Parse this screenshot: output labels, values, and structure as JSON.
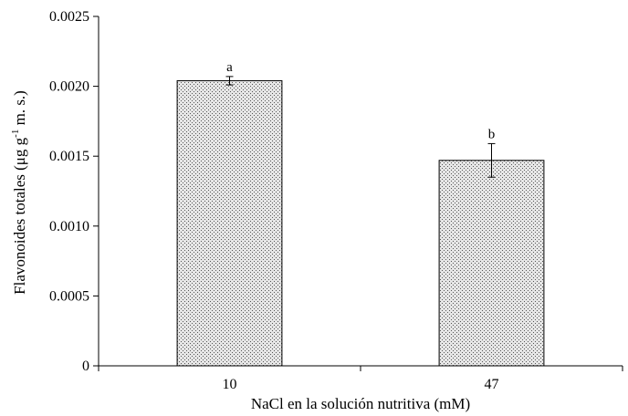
{
  "chart_data": {
    "type": "bar",
    "categories": [
      "10",
      "47"
    ],
    "values": [
      0.00204,
      0.00147
    ],
    "errors": [
      3e-05,
      0.00012
    ],
    "significance": [
      "a",
      "b"
    ],
    "xlabel": "NaCl en la solución nutritiva (mM)",
    "ylabel_main": "Flavonoides totales (μg g",
    "ylabel_sup": "-1",
    "ylabel_tail": " m. s.)",
    "ylim": [
      0,
      0.0025
    ],
    "yticks": [
      "0",
      "0.0005",
      "0.0010",
      "0.0015",
      "0.0020",
      "0.0025"
    ],
    "grid": false,
    "bar_fill": "#c8c8c8",
    "bar_stroke": "#000000"
  }
}
